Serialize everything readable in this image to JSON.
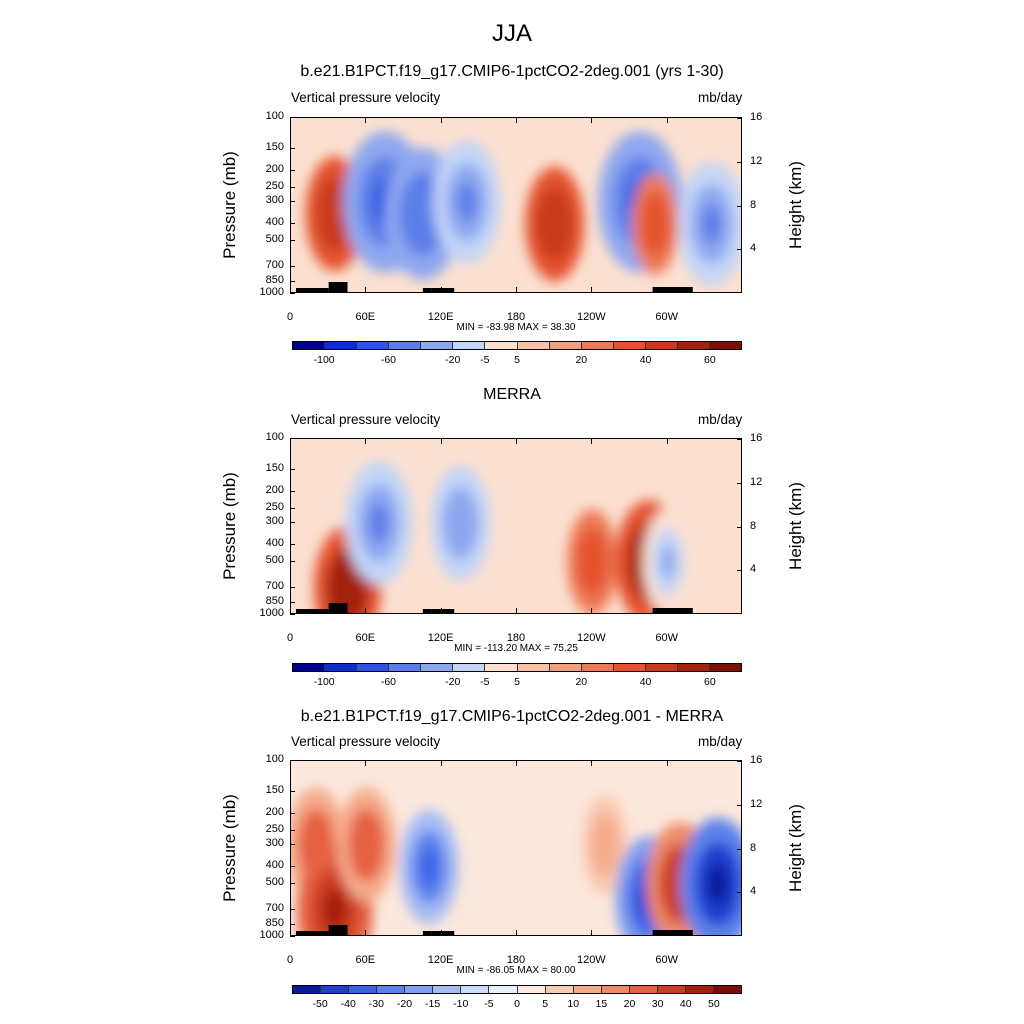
{
  "title": "JJA",
  "panels": [
    {
      "title": "b.e21.B1PCT.f19_g17.CMIP6-1pctCO2-2deg.001 (yrs 1-30)",
      "left_string": "Vertical pressure velocity",
      "right_string": "mb/day",
      "min_max": "MIN = -83.98  MAX =  38.30",
      "colorbar_labels": [
        "-100",
        "-60",
        "-20",
        "-5",
        "5",
        "20",
        "40",
        "60"
      ]
    },
    {
      "title": "MERRA",
      "left_string": "Vertical pressure velocity",
      "right_string": "mb/day",
      "min_max": "MIN = -113.20  MAX =  75.25",
      "colorbar_labels": [
        "-100",
        "-60",
        "-20",
        "-5",
        "5",
        "20",
        "40",
        "60"
      ]
    },
    {
      "title": "b.e21.B1PCT.f19_g17.CMIP6-1pctCO2-2deg.001 - MERRA",
      "left_string": "Vertical pressure velocity",
      "right_string": "mb/day",
      "min_max": "MIN = -86.05  MAX =  80.00",
      "colorbar_labels": [
        "-50",
        "-40",
        "-30",
        "-20",
        "-15",
        "-10",
        "-5",
        "0",
        "5",
        "10",
        "15",
        "20",
        "30",
        "40",
        "50"
      ]
    }
  ],
  "y_axis_label": "Pressure (mb)",
  "right_axis_label": "Height (km)",
  "y_ticks": [
    "100",
    "150",
    "200",
    "250",
    "300",
    "400",
    "500",
    "700",
    "850",
    "1000"
  ],
  "x_ticks": [
    "0",
    "60E",
    "120E",
    "180",
    "120W",
    "60W"
  ],
  "right_ticks": [
    "16",
    "12",
    "8",
    "4"
  ],
  "colors": {
    "abs_scale": [
      "#00008f",
      "#0d2fc9",
      "#2f55e0",
      "#5b7ee8",
      "#8ea8f0",
      "#c3d5f8",
      "#fbe0d0",
      "#f7c3a8",
      "#f3a07e",
      "#ed7a57",
      "#e4532f",
      "#c83a1d",
      "#a2230f",
      "#7a1006"
    ],
    "diff_scale": [
      "#0a1a9c",
      "#1f3fd0",
      "#3a62e6",
      "#5c82ec",
      "#809ff0",
      "#a6bcf4",
      "#cadaf9",
      "#e8f0fc",
      "#fce8dc",
      "#f9cbb3",
      "#f5ab8b",
      "#ef8a66",
      "#e66142",
      "#cc3d22",
      "#a41f0c",
      "#7c0d04"
    ]
  },
  "chart_data": [
    {
      "type": "heatmap",
      "title": "b.e21.B1PCT.f19_g17.CMIP6-1pctCO2-2deg.001 (yrs 1-30)",
      "ylabel": "Pressure (mb)",
      "xlim": [
        0,
        360
      ],
      "ylim": [
        1000,
        100
      ],
      "y_scale": "log",
      "min": -83.98,
      "max": 38.3,
      "levels": [
        -100,
        -80,
        -60,
        -40,
        -20,
        -10,
        -5,
        0,
        5,
        10,
        20,
        30,
        40,
        50,
        60
      ],
      "features": [
        {
          "lon": 35,
          "p": 350,
          "value": 30
        },
        {
          "lon": 75,
          "p": 300,
          "value": -60
        },
        {
          "lon": 105,
          "p": 350,
          "value": -50
        },
        {
          "lon": 140,
          "p": 300,
          "value": -40
        },
        {
          "lon": 210,
          "p": 400,
          "value": 30
        },
        {
          "lon": 278,
          "p": 300,
          "value": -60
        },
        {
          "lon": 290,
          "p": 400,
          "value": 15
        },
        {
          "lon": 335,
          "p": 400,
          "value": -40
        }
      ]
    },
    {
      "type": "heatmap",
      "title": "MERRA",
      "ylabel": "Pressure (mb)",
      "xlim": [
        0,
        360
      ],
      "ylim": [
        1000,
        100
      ],
      "y_scale": "log",
      "min": -113.2,
      "max": 75.25,
      "levels": [
        -100,
        -80,
        -60,
        -40,
        -20,
        -10,
        -5,
        0,
        5,
        10,
        20,
        30,
        40,
        50,
        60
      ],
      "features": [
        {
          "lon": 45,
          "p": 700,
          "value": 40
        },
        {
          "lon": 70,
          "p": 300,
          "value": -40
        },
        {
          "lon": 135,
          "p": 300,
          "value": -30
        },
        {
          "lon": 240,
          "p": 500,
          "value": 20
        },
        {
          "lon": 285,
          "p": 500,
          "value": 40
        },
        {
          "lon": 300,
          "p": 500,
          "value": -20
        }
      ]
    },
    {
      "type": "heatmap",
      "title": "b.e21.B1PCT.f19_g17.CMIP6-1pctCO2-2deg.001 - MERRA",
      "ylabel": "Pressure (mb)",
      "xlim": [
        0,
        360
      ],
      "ylim": [
        1000,
        100
      ],
      "y_scale": "log",
      "min": -86.05,
      "max": 80.0,
      "levels": [
        -50,
        -40,
        -30,
        -20,
        -15,
        -10,
        -5,
        0,
        5,
        10,
        15,
        20,
        30,
        40,
        50
      ],
      "features": [
        {
          "lon": 20,
          "p": 300,
          "value": 30
        },
        {
          "lon": 35,
          "p": 700,
          "value": 50
        },
        {
          "lon": 60,
          "p": 300,
          "value": 30
        },
        {
          "lon": 110,
          "p": 400,
          "value": -30
        },
        {
          "lon": 250,
          "p": 300,
          "value": 15
        },
        {
          "lon": 285,
          "p": 600,
          "value": -40
        },
        {
          "lon": 310,
          "p": 500,
          "value": 40
        },
        {
          "lon": 340,
          "p": 500,
          "value": -50
        }
      ]
    }
  ]
}
